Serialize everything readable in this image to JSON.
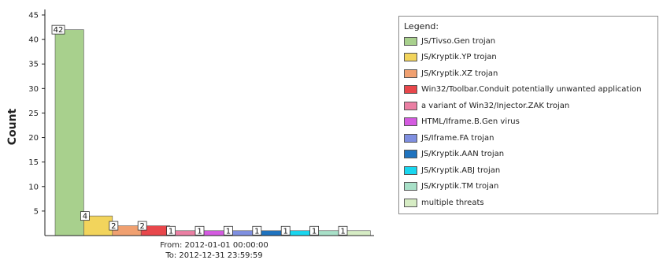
{
  "chart_data": {
    "type": "bar",
    "ylabel": "Count",
    "xlabel": "",
    "ylim": [
      0,
      45
    ],
    "yticks": [
      5,
      10,
      15,
      20,
      25,
      30,
      35,
      40,
      45
    ],
    "grid": false,
    "legend_position": "right",
    "period": {
      "from": "From: 2012-01-01 00:00:00",
      "to": "To: 2012-12-31 23:59:59"
    },
    "legend_title": "Legend:",
    "series": [
      {
        "name": "JS/Tivso.Gen trojan",
        "value": 42,
        "label": "42",
        "color": "#a8d08d"
      },
      {
        "name": "JS/Kryptik.YP trojan",
        "value": 4,
        "label": "4",
        "color": "#f2d45c"
      },
      {
        "name": "JS/Kryptik.XZ trojan",
        "value": 2,
        "label": "2",
        "color": "#f0a070"
      },
      {
        "name": "Win32/Toolbar.Conduit potentially unwanted application",
        "value": 2,
        "label": "2",
        "color": "#e8474b"
      },
      {
        "name": "a variant of Win32/Injector.ZAK trojan",
        "value": 1,
        "label": "1",
        "color": "#ea7fa3"
      },
      {
        "name": "HTML/Iframe.B.Gen virus",
        "value": 1,
        "label": "1",
        "color": "#d45be0"
      },
      {
        "name": "JS/Iframe.FA trojan",
        "value": 1,
        "label": "1",
        "color": "#7f8fe0"
      },
      {
        "name": "JS/Kryptik.AAN trojan",
        "value": 1,
        "label": "1",
        "color": "#1f73bf"
      },
      {
        "name": "JS/Kryptik.ABJ trojan",
        "value": 1,
        "label": "1",
        "color": "#19d6ef"
      },
      {
        "name": "JS/Kryptik.TM trojan",
        "value": 1,
        "label": "1",
        "color": "#a8e0c8"
      },
      {
        "name": "multiple threats",
        "value": 1,
        "label": "1",
        "color": "#d6ecc4"
      }
    ]
  }
}
